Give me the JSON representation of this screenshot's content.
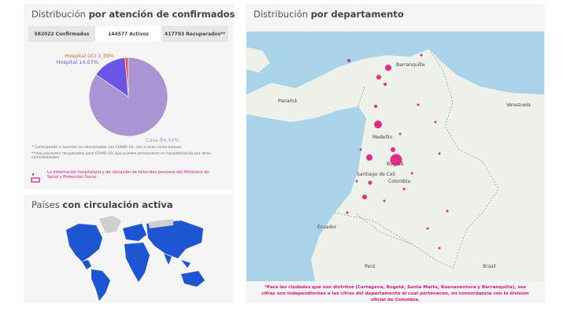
{
  "left_panel": {
    "title_light": "Distribución",
    "title_bold": "por atención de confirmados",
    "tabs": [
      "582022 Confirmados",
      "144577 Activos",
      "417793 Recuperados**"
    ],
    "footnotes": [
      "* Corresponde a muertes no relacionadas con COVID-19, aún si eran casos activos",
      "**Hay pacientes recuperados para COVID-19, que pueden permanecer en hospitalización por otras comorbilidades"
    ],
    "source_note": "La información hospitalaria y de ubicación de fallecidos proviene del Ministerio de Salud y Protección Social"
  },
  "pie": {
    "labels": [
      "Casa 84.54%",
      "Hospital 14.07%",
      "Hospital UCI 1.39%"
    ],
    "values": [
      84.54,
      14.07,
      1.39
    ],
    "colors": [
      "#a995d3",
      "#6c54e6",
      "#f05a3c"
    ]
  },
  "world_panel": {
    "title_light": "Países",
    "title_bold": "con circulación activa"
  },
  "right_panel": {
    "title_light": "Distribución",
    "title_bold": "por departamento",
    "map_labels": [
      "Barranquilla",
      "Venezuela",
      "Medellín",
      "Bogotá",
      "Colombia",
      "Santiago de Cali",
      "Ecuador",
      "Brasil",
      "Perú",
      "Panamá"
    ],
    "footnote": "*Para las ciudades que son distritos (Cartagena, Bogotá, Santa Marta, Buenaventura y Barranquilla), sus cifras son independientes a las cifras del departamento al cual pertenecen, en concordancia con la división oficial de Colombia."
  }
}
